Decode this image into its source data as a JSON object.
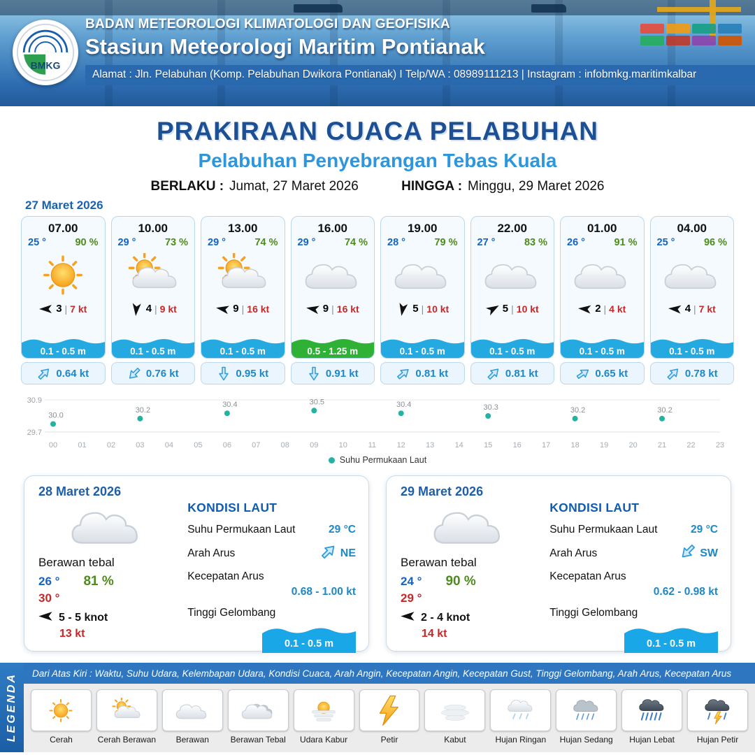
{
  "colors": {
    "title_dark_blue": "#1c4f93",
    "title_light_blue": "#2e96dd",
    "temp_blue": "#1464c4",
    "humidity_green": "#4e8b1d",
    "speed_red": "#c62828",
    "wave_blue": "#24a9e1",
    "wave_green": "#2eb135",
    "current_blue": "#1e88c7",
    "sst_teal": "#22b3a2"
  },
  "header": {
    "logo_text": "BMKG",
    "org": "BADAN METEOROLOGI KLIMATOLOGI DAN GEOFISIKA",
    "station": "Stasiun Meteorologi Maritim Pontianak",
    "address": "Alamat : Jln. Pelabuhan (Komp. Pelabuhan Dwikora Pontianak) I Telp/WA : 08989111213 | Instagram : infobmkg.maritimkalbar"
  },
  "title": {
    "main": "PRAKIRAAN CUACA PELABUHAN",
    "subtitle": "Pelabuhan Penyebrangan Tebas Kuala",
    "berlaku_value": "Jumat, 27 Maret 2026",
    "hingga_value": "Minggu, 29 Maret 2026"
  },
  "labels": {
    "berlaku": "BERLAKU :",
    "hingga": "HINGGA :",
    "sst": "Suhu Permukaan Laut",
    "arah_arus": "Arah Arus",
    "kec_arus": "Kecepatan Arus",
    "gelombang": "Tinggi Gelombang"
  },
  "forecast": {
    "date": "27 Maret 2026",
    "cards": [
      {
        "time": "07.00",
        "temp": "25 °",
        "humidity": "90 %",
        "icon": "sunny",
        "wind_speed": "3",
        "wind_gust": "7 kt",
        "wind_deg": 180,
        "wave": "0.1 - 0.5 m",
        "wave_color": "#24a9e1",
        "current_speed": "0.64 kt",
        "current_deg": -45
      },
      {
        "time": "10.00",
        "temp": "29 °",
        "humidity": "73 %",
        "icon": "partly",
        "wind_speed": "4",
        "wind_gust": "9 kt",
        "wind_deg": 95,
        "wave": "0.1 - 0.5 m",
        "wave_color": "#24a9e1",
        "current_speed": "0.76 kt",
        "current_deg": 135
      },
      {
        "time": "13.00",
        "temp": "29 °",
        "humidity": "74 %",
        "icon": "partly",
        "wind_speed": "9",
        "wind_gust": "16 kt",
        "wind_deg": 190,
        "wave": "0.1 - 0.5 m",
        "wave_color": "#24a9e1",
        "current_speed": "0.95 kt",
        "current_deg": 90
      },
      {
        "time": "16.00",
        "temp": "29 °",
        "humidity": "74 %",
        "icon": "cloudy",
        "wind_speed": "9",
        "wind_gust": "16 kt",
        "wind_deg": 190,
        "wave": "0.5 - 1.25 m",
        "wave_color": "#2eb135",
        "current_speed": "0.91 kt",
        "current_deg": 90
      },
      {
        "time": "19.00",
        "temp": "28 °",
        "humidity": "79 %",
        "icon": "cloudy",
        "wind_speed": "5",
        "wind_gust": "10 kt",
        "wind_deg": 100,
        "wave": "0.1 - 0.5 m",
        "wave_color": "#24a9e1",
        "current_speed": "0.81 kt",
        "current_deg": -40
      },
      {
        "time": "22.00",
        "temp": "27 °",
        "humidity": "83 %",
        "icon": "cloudy",
        "wind_speed": "5",
        "wind_gust": "10 kt",
        "wind_deg": 330,
        "wave": "0.1 - 0.5 m",
        "wave_color": "#24a9e1",
        "current_speed": "0.81 kt",
        "current_deg": -45
      },
      {
        "time": "01.00",
        "temp": "26 °",
        "humidity": "91 %",
        "icon": "cloudy",
        "wind_speed": "2",
        "wind_gust": "4 kt",
        "wind_deg": 185,
        "wave": "0.1 - 0.5 m",
        "wave_color": "#24a9e1",
        "current_speed": "0.65 kt",
        "current_deg": -35
      },
      {
        "time": "04.00",
        "temp": "25 °",
        "humidity": "96 %",
        "icon": "cloudy",
        "wind_speed": "4",
        "wind_gust": "7 kt",
        "wind_deg": 185,
        "wave": "0.1 - 0.5 m",
        "wave_color": "#24a9e1",
        "current_speed": "0.78 kt",
        "current_deg": -45
      }
    ]
  },
  "chart_data": {
    "type": "scatter",
    "series": [
      {
        "name": "Suhu Permukaan Laut",
        "x": [
          0,
          3,
          6,
          9,
          12,
          15,
          18,
          21
        ],
        "y": [
          30.0,
          30.2,
          30.4,
          30.5,
          30.4,
          30.3,
          30.2,
          30.2
        ]
      }
    ],
    "xticks": [
      "00",
      "01",
      "02",
      "03",
      "04",
      "05",
      "06",
      "07",
      "08",
      "09",
      "10",
      "11",
      "12",
      "13",
      "14",
      "15",
      "16",
      "17",
      "18",
      "19",
      "20",
      "21",
      "22",
      "23"
    ],
    "ylim": [
      29.7,
      30.9
    ],
    "yticks": [
      29.7,
      30.9
    ],
    "point_color": "#22b3a2",
    "legend_position": "bottom",
    "grid": true
  },
  "day_cards": [
    {
      "date": "28 Maret 2026",
      "icon": "cloudy",
      "condition": "Berawan tebal",
      "temp_min": "26 °",
      "humidity": "81 %",
      "temp_max": "30 °",
      "wind": "5 - 5 knot",
      "wind_deg": 180,
      "gust": "13 kt",
      "sea": {
        "title": "KONDISI LAUT",
        "sst": "29 °C",
        "current_dir": "NE",
        "current_deg": -45,
        "current_speed": "0.68 - 1.00 kt",
        "wave": "0.1 - 0.5 m"
      }
    },
    {
      "date": "29 Maret 2026",
      "icon": "cloudy",
      "condition": "Berawan tebal",
      "temp_min": "24 °",
      "humidity": "90 %",
      "temp_max": "29 °",
      "wind": "2 - 4 knot",
      "wind_deg": 180,
      "gust": "14 kt",
      "sea": {
        "title": "KONDISI LAUT",
        "sst": "29 °C",
        "current_dir": "SW",
        "current_deg": 135,
        "current_speed": "0.62 - 0.98 kt",
        "wave": "0.1 - 0.5 m"
      }
    }
  ],
  "legend": {
    "title": "LEGENDA",
    "note": "Dari Atas Kiri : Waktu, Suhu Udara, Kelembapan Udara, Kondisi Cuaca, Arah Angin, Kecepatan Angin, Kecepatan Gust, Tinggi Gelombang, Arah Arus, Kecepatan Arus",
    "items": [
      {
        "icon": "sunny",
        "label": "Cerah"
      },
      {
        "icon": "partly",
        "label": "Cerah Berawan"
      },
      {
        "icon": "cloudy",
        "label": "Berawan"
      },
      {
        "icon": "overcast",
        "label": "Berawan Tebal"
      },
      {
        "icon": "haze",
        "label": "Udara Kabur"
      },
      {
        "icon": "thunder",
        "label": "Petir"
      },
      {
        "icon": "fog",
        "label": "Kabut"
      },
      {
        "icon": "rain_light",
        "label": "Hujan Ringan"
      },
      {
        "icon": "rain_mod",
        "label": "Hujan Sedang"
      },
      {
        "icon": "rain_heavy",
        "label": "Hujan Lebat"
      },
      {
        "icon": "storm",
        "label": "Hujan Petir"
      }
    ]
  }
}
